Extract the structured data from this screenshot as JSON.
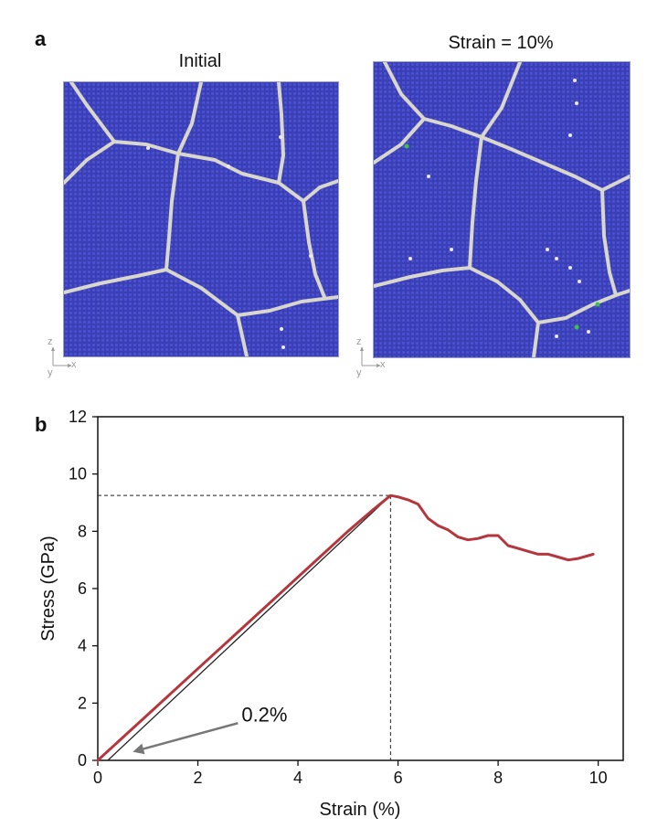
{
  "panel_a": {
    "letter": "a",
    "left_title": "Initial",
    "right_title": "Strain = 10%",
    "axis_z": "z",
    "axis_x": "x",
    "axis_y": "y"
  },
  "panel_b": {
    "letter": "b"
  },
  "colors": {
    "grain": "#3a3fb5",
    "boundary": "#d9d6cc",
    "curve": "#b5363c",
    "offset_line": "#222222",
    "arrow": "#777777"
  },
  "chart_data": {
    "type": "line",
    "xlabel": "Strain (%)",
    "ylabel": "Stress (GPa)",
    "xlim": [
      0,
      10.5
    ],
    "ylim": [
      0,
      12
    ],
    "xticks": [
      "0",
      "2",
      "4",
      "6",
      "8",
      "10"
    ],
    "yticks": [
      "0",
      "2",
      "4",
      "6",
      "8",
      "10",
      "12"
    ],
    "series": [
      {
        "x": [
          0,
          0.5,
          1.0,
          1.5,
          2.0,
          2.5,
          3.0,
          3.5,
          4.0,
          4.5,
          5.0,
          5.5,
          5.85,
          6.0,
          6.2,
          6.4,
          6.6,
          6.8,
          7.0,
          7.2,
          7.4,
          7.6,
          7.8,
          8.0,
          8.2,
          8.4,
          8.6,
          8.8,
          9.0,
          9.2,
          9.4,
          9.6,
          9.8,
          9.9
        ],
        "y": [
          0,
          0.8,
          1.6,
          2.4,
          3.2,
          4.0,
          4.8,
          5.6,
          6.4,
          7.2,
          8.0,
          8.75,
          9.25,
          9.2,
          9.1,
          8.95,
          8.45,
          8.2,
          8.05,
          7.8,
          7.7,
          7.75,
          7.85,
          7.85,
          7.5,
          7.4,
          7.3,
          7.2,
          7.2,
          7.1,
          7.0,
          7.05,
          7.15,
          7.2
        ]
      }
    ],
    "offset_line": {
      "x": [
        0.2,
        5.85
      ],
      "y": [
        0,
        9.25
      ]
    },
    "peak_guides": {
      "x": 5.85,
      "y": 9.25
    },
    "annotation": {
      "text": "0.2%",
      "from": [
        2.8,
        1.3
      ],
      "to": [
        0.7,
        0.3
      ]
    }
  }
}
